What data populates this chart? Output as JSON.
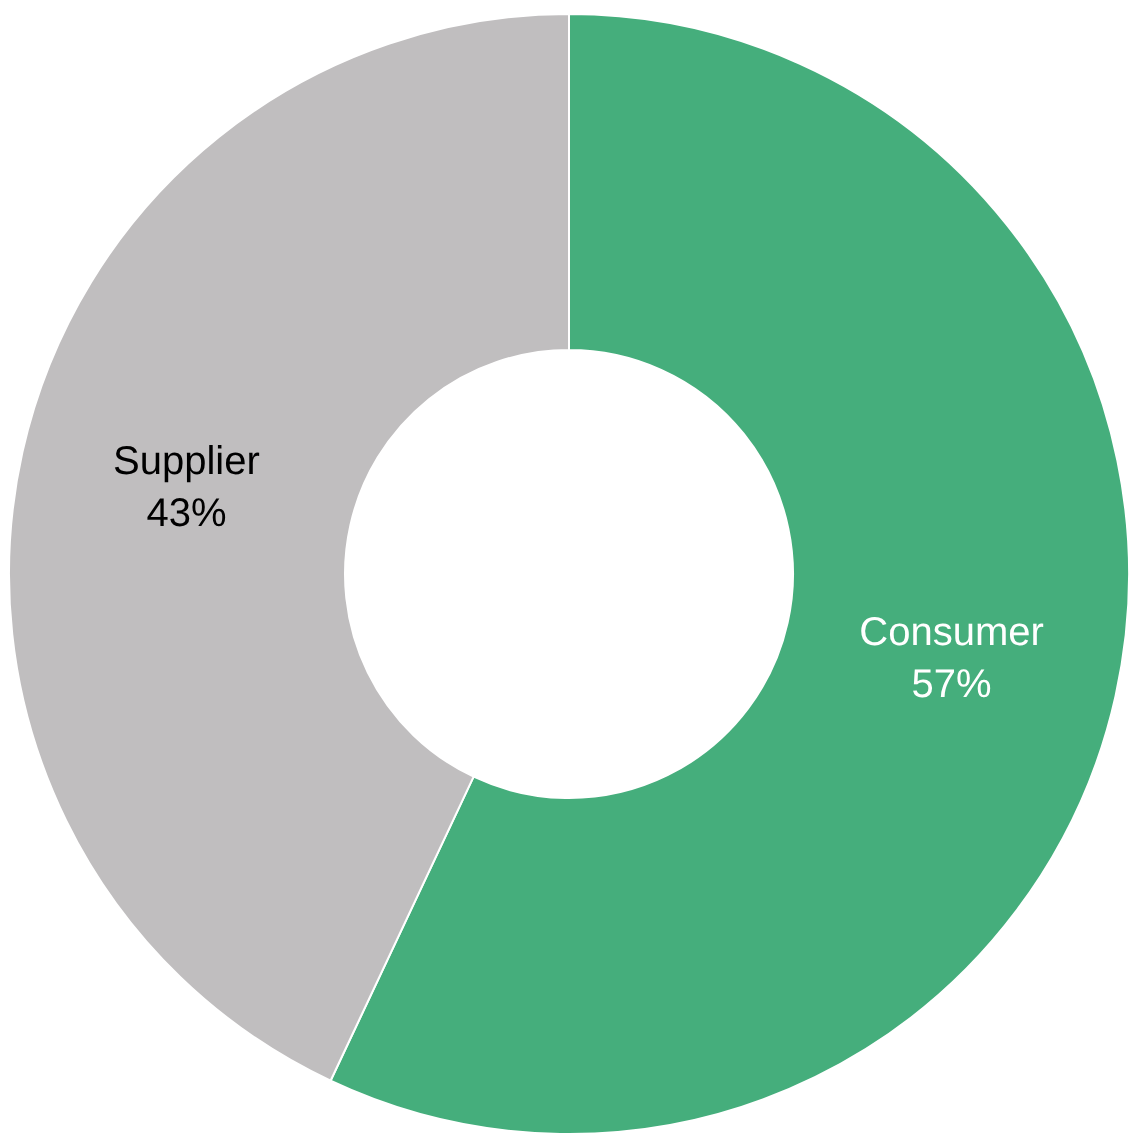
{
  "chart_data": {
    "type": "donut",
    "categories": [
      "Consumer",
      "Supplier"
    ],
    "values": [
      57,
      43
    ],
    "colors": [
      "#45ae7c",
      "#c0bebf"
    ],
    "value_labels": [
      "57%",
      "43%"
    ],
    "legend": false
  }
}
